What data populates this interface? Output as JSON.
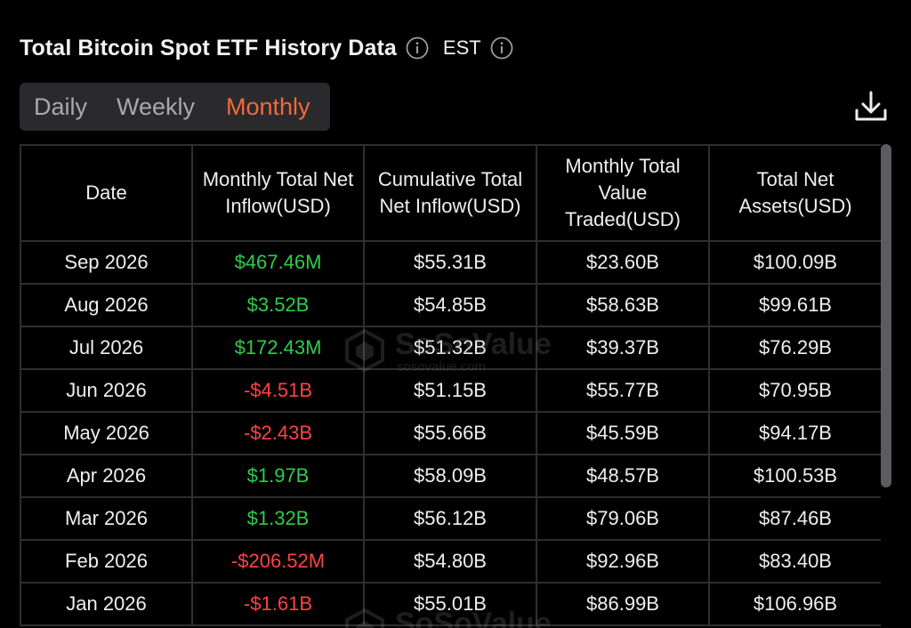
{
  "header": {
    "title": "Total Bitcoin Spot ETF History Data",
    "timezone": "EST",
    "info_icon": "info-icon",
    "download_icon": "download-icon"
  },
  "tabs": [
    {
      "label": "Daily",
      "active": false
    },
    {
      "label": "Weekly",
      "active": false
    },
    {
      "label": "Monthly",
      "active": true
    }
  ],
  "colors": {
    "accent": "#f26a3c",
    "positive": "#2ecc4a",
    "negative": "#ff4242",
    "background": "#000000"
  },
  "table": {
    "columns": [
      "Date",
      "Monthly Total Net Inflow(USD)",
      "Cumulative Total Net Inflow(USD)",
      "Monthly Total Value Traded(USD)",
      "Total Net Assets(USD)"
    ],
    "rows": [
      {
        "date": "Sep 2026",
        "net_inflow": "$467.46M",
        "sign": "pos",
        "cumulative": "$55.31B",
        "traded": "$23.60B",
        "assets": "$100.09B"
      },
      {
        "date": "Aug 2026",
        "net_inflow": "$3.52B",
        "sign": "pos",
        "cumulative": "$54.85B",
        "traded": "$58.63B",
        "assets": "$99.61B"
      },
      {
        "date": "Jul 2026",
        "net_inflow": "$172.43M",
        "sign": "pos",
        "cumulative": "$51.32B",
        "traded": "$39.37B",
        "assets": "$76.29B"
      },
      {
        "date": "Jun 2026",
        "net_inflow": "-$4.51B",
        "sign": "neg",
        "cumulative": "$51.15B",
        "traded": "$55.77B",
        "assets": "$70.95B"
      },
      {
        "date": "May 2026",
        "net_inflow": "-$2.43B",
        "sign": "neg",
        "cumulative": "$55.66B",
        "traded": "$45.59B",
        "assets": "$94.17B"
      },
      {
        "date": "Apr 2026",
        "net_inflow": "$1.97B",
        "sign": "pos",
        "cumulative": "$58.09B",
        "traded": "$48.57B",
        "assets": "$100.53B"
      },
      {
        "date": "Mar 2026",
        "net_inflow": "$1.32B",
        "sign": "pos",
        "cumulative": "$56.12B",
        "traded": "$79.06B",
        "assets": "$87.46B"
      },
      {
        "date": "Feb 2026",
        "net_inflow": "-$206.52M",
        "sign": "neg",
        "cumulative": "$54.80B",
        "traded": "$92.96B",
        "assets": "$83.40B"
      },
      {
        "date": "Jan 2026",
        "net_inflow": "-$1.61B",
        "sign": "neg",
        "cumulative": "$55.01B",
        "traded": "$86.99B",
        "assets": "$106.96B"
      }
    ]
  },
  "watermark": {
    "name": "SoSoValue",
    "url": "sosovalue.com"
  }
}
